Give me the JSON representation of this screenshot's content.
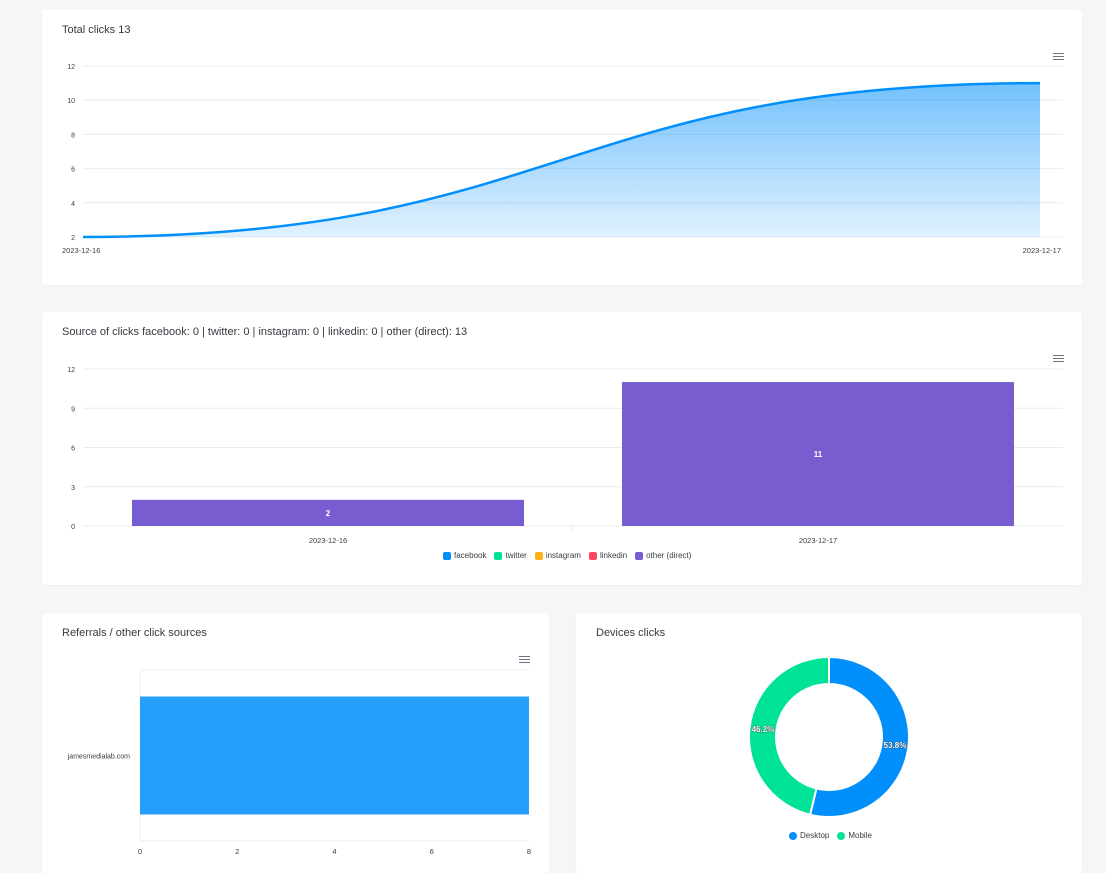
{
  "colors": {
    "facebook": "#008ffb",
    "twitter": "#00e396",
    "instagram": "#feb019",
    "linkedin": "#ff4560",
    "other": "#775dd0",
    "referral_bar": "#269ffb",
    "desktop": "#008ffb",
    "mobile": "#00e396"
  },
  "total_clicks": {
    "title": "Total clicks 13",
    "chart_data": {
      "type": "area",
      "x": [
        "2023-12-16",
        "2023-12-17"
      ],
      "y": [
        2,
        11
      ],
      "yticks": [
        "12",
        "10",
        "8",
        "6",
        "4",
        "2"
      ],
      "ylim": [
        2,
        12
      ],
      "grid": true
    }
  },
  "source_clicks": {
    "title": "Source of clicks facebook: 0 | twitter: 0 | instagram: 0 | linkedin: 0 | other (direct): 13",
    "chart_data": {
      "type": "bar",
      "categories": [
        "2023-12-16",
        "2023-12-17"
      ],
      "series": [
        {
          "name": "facebook",
          "values": [
            0,
            0
          ]
        },
        {
          "name": "twitter",
          "values": [
            0,
            0
          ]
        },
        {
          "name": "instagram",
          "values": [
            0,
            0
          ]
        },
        {
          "name": "linkedin",
          "values": [
            0,
            0
          ]
        },
        {
          "name": "other (direct)",
          "values": [
            2,
            11
          ]
        }
      ],
      "data_labels": [
        "2",
        "11"
      ],
      "yticks": [
        "12",
        "9",
        "6",
        "3",
        "0"
      ],
      "ylim": [
        0,
        12
      ],
      "legend": "bottom"
    }
  },
  "referrals": {
    "title": "Referrals / other click sources",
    "chart_data": {
      "type": "bar",
      "orientation": "horizontal",
      "categories": [
        "jamesmedialab.com"
      ],
      "values": [
        8
      ],
      "xticks": [
        "0",
        "2",
        "4",
        "6",
        "8"
      ],
      "xlim": [
        0,
        8
      ]
    }
  },
  "devices": {
    "title": "Devices clicks",
    "chart_data": {
      "type": "pie",
      "variant": "donut",
      "labels": [
        "Desktop",
        "Mobile"
      ],
      "values": [
        53.8,
        46.2
      ],
      "data_labels": [
        "53.8%",
        "46.2%"
      ],
      "legend": "bottom"
    }
  },
  "icons": {
    "menu": "hamburger-menu-icon"
  }
}
